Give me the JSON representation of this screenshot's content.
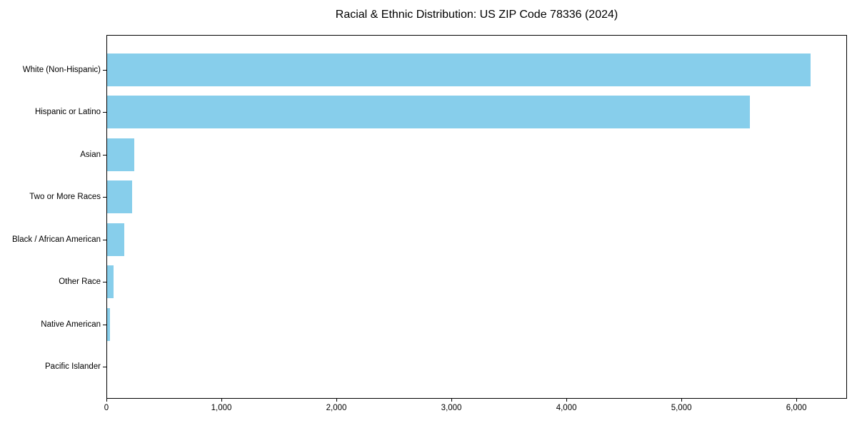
{
  "title": "Racial & Ethnic Distribution: US ZIP Code 78336 (2024)",
  "colors": {
    "bar": "#87CEEB",
    "axis": "#000000",
    "text": "#000000",
    "background": "#ffffff"
  },
  "chart_data": {
    "type": "bar",
    "orientation": "horizontal",
    "title": "Racial & Ethnic Distribution: US ZIP Code 78336 (2024)",
    "categories": [
      "White (Non-Hispanic)",
      "Hispanic or Latino",
      "Asian",
      "Two or More Races",
      "Black / African American",
      "Other Race",
      "Native American",
      "Pacific Islander"
    ],
    "values": [
      6130,
      5600,
      235,
      220,
      150,
      55,
      25,
      0
    ],
    "xlabel": "",
    "ylabel": "",
    "xlim": [
      0,
      6440
    ],
    "xtick_values": [
      0,
      1000,
      2000,
      3000,
      4000,
      5000,
      6000
    ],
    "xtick_labels": [
      "0",
      "1,000",
      "2,000",
      "3,000",
      "4,000",
      "5,000",
      "6,000"
    ],
    "bar_color": "#87CEEB",
    "grid": false,
    "legend_position": "none"
  }
}
